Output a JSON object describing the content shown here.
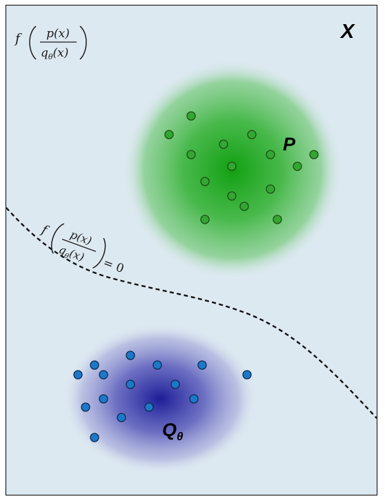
{
  "diagram": {
    "space_label": "X",
    "target_label": "P",
    "model_label": "Q",
    "model_subscript": "θ",
    "density_ratio_expr": {
      "f": "f",
      "numerator": "p(x)",
      "denominator_q": "q",
      "denominator_sub": "θ",
      "denominator_arg": "(x)"
    },
    "boundary_expr": {
      "f": "f",
      "numerator": "p(x)",
      "denominator_q": "q",
      "denominator_sub": "θ",
      "denominator_arg": "(x)",
      "equals": "= 0"
    },
    "colors": {
      "background": "#dde9f1",
      "frame": "#222222",
      "p_cloud_center": "#1aa31a",
      "p_point_fill": "#33a633",
      "p_point_stroke": "#1e4d14",
      "q_cloud_center": "#1f1f9a",
      "q_point_fill": "#1e78c8",
      "q_point_stroke": "#0a2a55",
      "boundary": "#111111"
    },
    "p_samples_count": 19,
    "q_samples_count": 20
  }
}
